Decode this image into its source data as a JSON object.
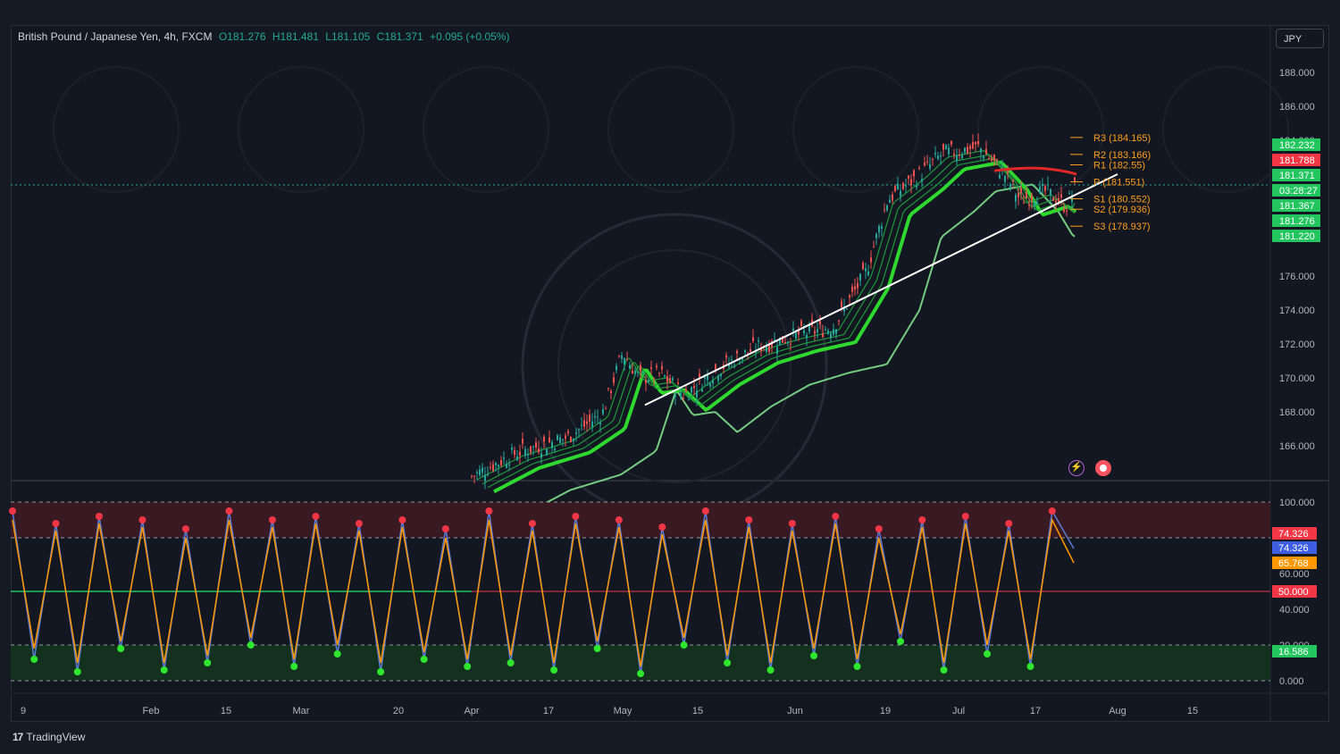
{
  "legend": {
    "title": "British Pound / Japanese Yen, 4h, FXCM",
    "open": "O181.276",
    "high": "H181.481",
    "low": "L181.105",
    "close": "C181.371",
    "change": "+0.095 (+0.05%)"
  },
  "currency_button": "JPY",
  "branding": "TradingView",
  "icons": {
    "flash": "flash-icon",
    "record": "record-icon",
    "logo": "tradingview-logo-icon"
  },
  "colors": {
    "background": "#131722",
    "up": "#26a69a",
    "down": "#ef5350",
    "ema_bright": "#2ed82e",
    "ema_slow": "#7fe08a",
    "trendline": "#ffffff",
    "pivot": "#ff9f1a",
    "stoch_k": "#5b7bd5",
    "stoch_d": "#ff9800",
    "overbought_zone": "#3a1a22",
    "oversold_zone": "#14301e"
  },
  "chart_data": [
    {
      "type": "candlestick",
      "title": "British Pound / Japanese Yen, 4h, FXCM",
      "y_ticks": [
        "188.000",
        "186.000",
        "184.000",
        "176.000",
        "174.000",
        "172.000",
        "170.000",
        "168.000",
        "166.000"
      ],
      "ylim": [
        164.0,
        189.0
      ],
      "x_ticks": [
        "9",
        "Feb",
        "15",
        "Mar",
        "20",
        "Apr",
        "17",
        "May",
        "15",
        "Jun",
        "19",
        "Jul",
        "17",
        "Aug",
        "15"
      ],
      "price_path": [
        {
          "x": "Apr 1",
          "y": 164.2
        },
        {
          "x": "Apr 10",
          "y": 165.6
        },
        {
          "x": "Apr 20",
          "y": 166.5
        },
        {
          "x": "Apr 27",
          "y": 167.9
        },
        {
          "x": "May 1",
          "y": 171.5
        },
        {
          "x": "May 4",
          "y": 170.0
        },
        {
          "x": "May 8",
          "y": 170.2
        },
        {
          "x": "May 12",
          "y": 169.0
        },
        {
          "x": "May 18",
          "y": 170.5
        },
        {
          "x": "May 25",
          "y": 171.8
        },
        {
          "x": "Jun 1",
          "y": 172.5
        },
        {
          "x": "Jun 8",
          "y": 173.0
        },
        {
          "x": "Jun 14",
          "y": 176.2
        },
        {
          "x": "Jun 18",
          "y": 180.5
        },
        {
          "x": "Jun 24",
          "y": 182.0
        },
        {
          "x": "Jun 28",
          "y": 183.2
        },
        {
          "x": "Jul 5",
          "y": 183.6
        },
        {
          "x": "Jul 10",
          "y": 182.0
        },
        {
          "x": "Jul 13",
          "y": 180.5
        },
        {
          "x": "Jul 18",
          "y": 181.0
        },
        {
          "x": "Jul 22",
          "y": 180.1
        },
        {
          "x": "Jul 24",
          "y": 181.4
        }
      ],
      "trendline": {
        "from": {
          "x": "May 5",
          "y": 168.4
        },
        "to": {
          "x": "Aug 1",
          "y": 182.0
        }
      },
      "pivots": [
        {
          "label": "R3 (184.165)",
          "value": 184.165
        },
        {
          "label": "R2 (183.166)",
          "value": 183.166
        },
        {
          "label": "R1 (182.55)",
          "value": 182.55
        },
        {
          "label": "P (181.551)",
          "value": 181.551
        },
        {
          "label": "S1 (180.552)",
          "value": 180.552
        },
        {
          "label": "S2 (179.936)",
          "value": 179.936
        },
        {
          "label": "S3 (178.937)",
          "value": 178.937
        }
      ],
      "price_labels": [
        {
          "text": "182.232",
          "color": "#22c55e"
        },
        {
          "text": "181.788",
          "color": "#f23645"
        },
        {
          "text": "181.371",
          "color": "#22c55e"
        },
        {
          "text": "03:28:27",
          "color": "#22c55e"
        },
        {
          "text": "181.367",
          "color": "#22c55e"
        },
        {
          "text": "181.276",
          "color": "#22c55e"
        },
        {
          "text": "181.220",
          "color": "#22c55e"
        }
      ],
      "last_price": 181.371
    },
    {
      "type": "line",
      "y_ticks": [
        "100.000",
        "60.000",
        "40.000",
        "20.000",
        "0.000"
      ],
      "ylim": [
        0,
        100
      ],
      "levels": [
        100,
        80,
        50,
        20,
        0
      ],
      "series": [
        {
          "values": [
            95,
            12,
            88,
            5,
            92,
            18,
            90,
            6,
            85,
            10,
            95,
            20,
            90,
            8,
            92,
            15,
            88,
            5,
            90,
            12,
            85,
            8,
            95,
            10,
            88,
            6,
            92,
            18,
            90,
            4,
            86,
            20,
            95,
            10,
            90,
            6,
            88,
            14,
            92,
            8,
            85,
            22,
            90,
            6,
            92,
            15,
            88,
            8,
            95,
            74
          ]
        },
        {
          "values": [
            90,
            18,
            84,
            10,
            88,
            22,
            86,
            10,
            80,
            14,
            90,
            24,
            86,
            12,
            88,
            20,
            84,
            10,
            86,
            16,
            80,
            12,
            90,
            14,
            84,
            10,
            88,
            22,
            86,
            8,
            82,
            24,
            90,
            14,
            86,
            10,
            84,
            18,
            88,
            12,
            80,
            26,
            86,
            10,
            88,
            20,
            84,
            12,
            90,
            66
          ]
        }
      ],
      "price_labels": [
        {
          "text": "74.326",
          "color": "#f23645"
        },
        {
          "text": "74.326",
          "color": "#3d5ee0"
        },
        {
          "text": "65.768",
          "color": "#ff9800"
        },
        {
          "text": "50.000",
          "color": "#f23645"
        },
        {
          "text": "16.586",
          "color": "#22c55e"
        }
      ]
    }
  ]
}
